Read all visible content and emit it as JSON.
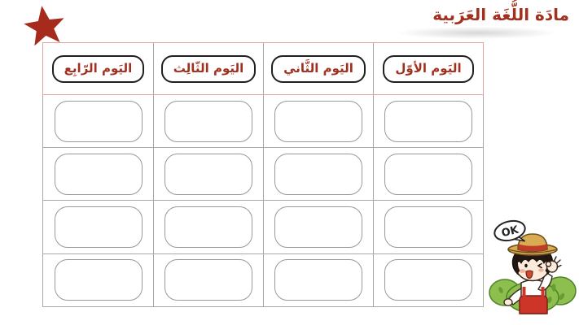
{
  "title": "مادَة اللُّغَة العَرَبية",
  "decorations": {
    "star_icon": "red-star",
    "star_color": "#a62b1c"
  },
  "table": {
    "headers": [
      {
        "label": "اليَوم الأوّل"
      },
      {
        "label": "اليَوم الثَّاني"
      },
      {
        "label": "اليَوم الثّالِث"
      },
      {
        "label": "اليَوم الرّابِع"
      }
    ],
    "row_count": 4
  },
  "sticker": {
    "bubble_text": "OK"
  },
  "colors": {
    "title_text": "#a1301f",
    "header_text": "#a1301f",
    "table_accent_border": "#e5a39e",
    "table_grid": "#a8a8a8",
    "slot_border": "#999999",
    "header_pill_border": "#1f1f1f"
  }
}
